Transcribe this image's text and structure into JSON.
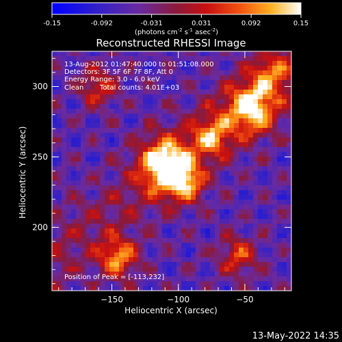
{
  "chart_data": {
    "type": "heatmap",
    "title": "Reconstructed RHESSI Image",
    "xlabel": "Heliocentric X (arcsec)",
    "ylabel": "Heliocentric Y (arcsec)",
    "xlim": [
      -195,
      -15
    ],
    "ylim": [
      155,
      325
    ],
    "xticks": [
      -150,
      -100,
      -50
    ],
    "yticks": [
      200,
      250,
      300
    ],
    "colorbar": {
      "min": -0.15,
      "max": 0.15,
      "ticks": [
        "-0.15",
        "-0.092",
        "-0.031",
        "0.031",
        "0.092",
        "0.15"
      ],
      "unit_label": "(photons cm",
      "unit_sup1": "-2",
      "unit_mid1": " s",
      "unit_sup2": "-1",
      "unit_mid2": " asec",
      "unit_sup3": "-2",
      "unit_end": ")"
    },
    "annotations": {
      "time": "13-Aug-2012 01:47:40.000 to 01:51:08.000",
      "detectors": "Detectors: 3F 5F 6F 7F 8F, Att 0",
      "energy": "Energy Range: 3.0 - 6.0 keV",
      "method": "Clean",
      "counts": "Total counts: 4.01E+03",
      "peak": "Position of Peak = [-113,232]"
    },
    "sources": [
      {
        "x": -110,
        "y": 245,
        "peak": 0.15
      },
      {
        "x": -45,
        "y": 285,
        "peak": 0.12
      },
      {
        "x": -95,
        "y": 232,
        "peak": 0.08
      },
      {
        "x": -75,
        "y": 265,
        "peak": 0.07
      },
      {
        "x": -145,
        "y": 178,
        "peak": 0.09
      },
      {
        "x": -55,
        "y": 180,
        "peak": 0.05
      },
      {
        "x": -160,
        "y": 300,
        "peak": 0.04
      },
      {
        "x": -30,
        "y": 310,
        "peak": 0.04
      }
    ],
    "colors": {
      "axis": "#ffffff",
      "background": "#000000"
    }
  },
  "footer_date": "13-May-2022 14:35"
}
